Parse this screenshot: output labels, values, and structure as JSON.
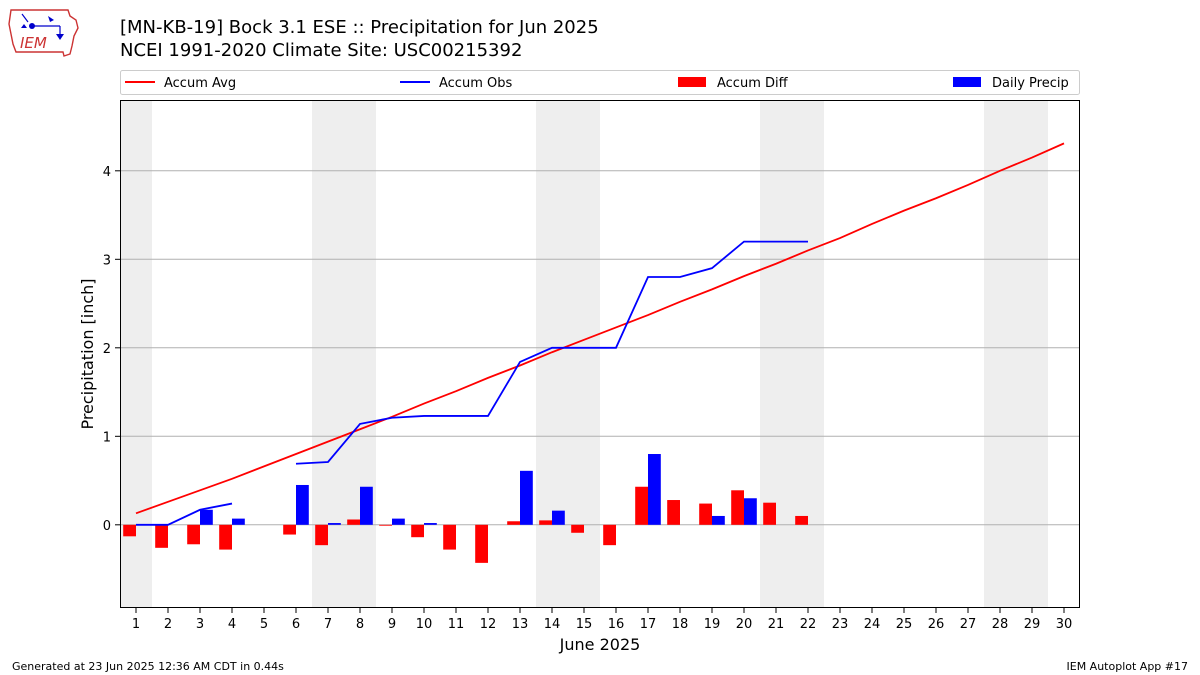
{
  "logo": {
    "text": "IEM",
    "icon": "iowa-state-outline-with-weather-instruments"
  },
  "title_line1": "[MN-KB-19] Bock 3.1 ESE :: Precipitation for Jun 2025",
  "title_line2": "NCEI 1991-2020 Climate Site: USC00215392",
  "footer_left": "Generated at 23 Jun 2025 12:36 AM CDT in 0.44s",
  "footer_right": "IEM Autoplot App #17",
  "colors": {
    "avg": "#ff0000",
    "obs": "#0000ff",
    "diff": "#ff0000",
    "daily": "#0000ff",
    "weekend": "#eeeeee",
    "grid": "#b0b0b0"
  },
  "chart_data": {
    "type": "bar",
    "xlabel": "June 2025",
    "ylabel": "Precipitation [inch]",
    "xlim": [
      0.5,
      30.5
    ],
    "ylim": [
      -0.94,
      4.8
    ],
    "yticks": [
      0,
      1,
      2,
      3,
      4
    ],
    "xticks": [
      1,
      2,
      3,
      4,
      5,
      6,
      7,
      8,
      9,
      10,
      11,
      12,
      13,
      14,
      15,
      16,
      17,
      18,
      19,
      20,
      21,
      22,
      23,
      24,
      25,
      26,
      27,
      28,
      29,
      30
    ],
    "grid": "horizontal",
    "legend_placement": "top",
    "weekends": [
      1,
      7,
      8,
      14,
      15,
      21,
      22,
      28,
      29
    ],
    "series": [
      {
        "name": "Accum Avg",
        "type": "line",
        "x": [
          1,
          2,
          3,
          4,
          5,
          6,
          7,
          8,
          9,
          10,
          11,
          12,
          13,
          14,
          15,
          16,
          17,
          18,
          19,
          20,
          21,
          22,
          23,
          24,
          25,
          26,
          27,
          28,
          29,
          30
        ],
        "values": [
          0.13,
          0.26,
          0.39,
          0.52,
          0.66,
          0.8,
          0.94,
          1.08,
          1.22,
          1.37,
          1.51,
          1.66,
          1.8,
          1.95,
          2.09,
          2.23,
          2.37,
          2.52,
          2.66,
          2.81,
          2.95,
          3.1,
          3.24,
          3.4,
          3.55,
          3.69,
          3.84,
          4.0,
          4.15,
          4.31
        ]
      },
      {
        "name": "Accum Obs",
        "type": "line",
        "segments": [
          {
            "x": [
              1,
              2,
              3,
              4
            ],
            "values": [
              0.0,
              0.0,
              0.17,
              0.24
            ]
          },
          {
            "x": [
              6,
              7,
              8,
              9,
              10,
              11,
              12,
              13,
              14,
              15,
              16,
              17,
              18,
              19,
              20,
              21,
              22
            ],
            "values": [
              0.69,
              0.71,
              1.14,
              1.21,
              1.23,
              1.23,
              1.23,
              1.84,
              2.0,
              2.0,
              2.0,
              2.8,
              2.8,
              2.9,
              3.2,
              3.2,
              3.2
            ]
          }
        ]
      },
      {
        "name": "Accum Diff",
        "type": "bar",
        "x": [
          1,
          2,
          3,
          4,
          6,
          7,
          8,
          9,
          10,
          11,
          12,
          13,
          14,
          15,
          16,
          17,
          18,
          19,
          20,
          21,
          22
        ],
        "values": [
          -0.13,
          -0.26,
          -0.22,
          -0.28,
          -0.11,
          -0.23,
          0.06,
          -0.01,
          -0.14,
          -0.28,
          -0.43,
          0.04,
          0.05,
          -0.09,
          -0.23,
          0.43,
          0.28,
          0.24,
          0.39,
          0.25,
          0.1
        ]
      },
      {
        "name": "Daily Precip",
        "type": "bar",
        "x": [
          3,
          4,
          6,
          7,
          8,
          9,
          10,
          13,
          14,
          17,
          19,
          20
        ],
        "values": [
          0.17,
          0.07,
          0.45,
          0.02,
          0.43,
          0.07,
          0.02,
          0.61,
          0.16,
          0.8,
          0.1,
          0.3
        ]
      }
    ]
  }
}
